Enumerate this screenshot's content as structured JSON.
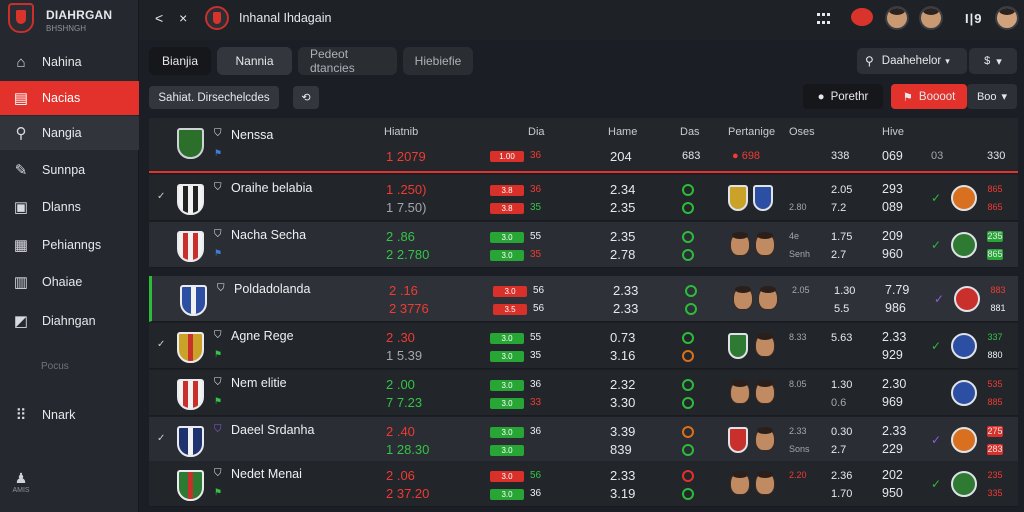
{
  "brand": {
    "name": "DIAHRGAN",
    "sub": "BHSHNGH"
  },
  "sidebar": {
    "items": [
      {
        "label": "Nahina",
        "icon": "home-icon"
      },
      {
        "label": "Nacias",
        "icon": "news-icon"
      },
      {
        "label": "Nangia",
        "icon": "search-icon"
      },
      {
        "label": "Sunnpa",
        "icon": "pen-icon"
      },
      {
        "label": "Dlanns",
        "icon": "image-icon"
      },
      {
        "label": "Pehianngs",
        "icon": "folder-icon"
      },
      {
        "label": "Ohaiae",
        "icon": "building-icon"
      },
      {
        "label": "Diahngan",
        "icon": "chart-icon"
      }
    ],
    "section": "Pocus",
    "extra": {
      "label": "Nnark",
      "icon": "grid-icon"
    },
    "footer": {
      "label": "AMIS",
      "icon": "person-icon"
    }
  },
  "topbar": {
    "title": "Inhanal Ihdagain",
    "arrows": "< ×",
    "bars": "I|9"
  },
  "tabs": [
    "Bianjia",
    "Nannia",
    "Pedeot dtancies",
    "Hiebiefie"
  ],
  "search": {
    "value": "Daahehelor",
    "caret": "▾"
  },
  "sort": {
    "label": "$",
    "caret": "▾"
  },
  "filters": {
    "chip": "Sahiat. Dirsechelcdes",
    "btn_dark": "Porethr",
    "btn_red": "Boooot",
    "btn_gray": "Boo"
  },
  "headers": {
    "name": "Nenssa",
    "c1": "Hiatnib",
    "c2": "Dia",
    "c3": "Hame",
    "c4": "Das",
    "c5": "Pertanige",
    "c6": "Oses",
    "c7": "Hive",
    "v1": "1 2079",
    "bar": "1.00",
    "bv": "36",
    "n1": "204",
    "h1": "683",
    "h2": "338",
    "h3": "069",
    "h4": "03",
    "h5": "330"
  },
  "rows": [
    {
      "name": "Oraihe belabia",
      "v1": "1 .250)",
      "v2": "1 7.50)",
      "b1": "3.8",
      "b2": "3.8",
      "bv1": "36",
      "bv2": "35",
      "n1": "2.34",
      "n2": "2.35",
      "s1": "",
      "s2": "2.80",
      "c1": "2.05",
      "c2": "7.2",
      "e1": "293",
      "e2": "089",
      "rt1": "865",
      "rt2": "865"
    },
    {
      "name": "Nacha Secha",
      "v1": "2 .86",
      "v2": "2 2.780",
      "b1": "3.0",
      "b2": "3.0",
      "bv1": "55",
      "bv2": "35",
      "n1": "2.35",
      "n2": "2.78",
      "s1": "4e",
      "s2": "Senh",
      "c1": "1.75",
      "c2": "2.7",
      "e1": "209",
      "e2": "960",
      "rt1": "235",
      "rt2": "865"
    },
    {
      "name": "Poldadolanda",
      "v1": "2 .16",
      "v2": "2 3776",
      "b1": "3.0",
      "b2": "3.5",
      "bv1": "56",
      "bv2": "56",
      "n1": "2.33",
      "n2": "2.33",
      "s1": "2.05",
      "s2": "",
      "c1": "1.30",
      "c2": "5.5",
      "e1": "7.79",
      "e2": "986",
      "rt1": "883",
      "rt2": "881"
    },
    {
      "name": "Agne Rege",
      "v1": "2 .30",
      "v2": "1 5.39",
      "b1": "3.0",
      "b2": "3.0",
      "bv1": "55",
      "bv2": "35",
      "n1": "0.73",
      "n2": "3.16",
      "s1": "8.33",
      "s2": "",
      "c1": "5.63",
      "c2": "",
      "e1": "2.33",
      "e2": "929",
      "rt1": "337",
      "rt2": "880"
    },
    {
      "name": "Nem elitie",
      "v1": "2 .00",
      "v2": "7 7.23",
      "b1": "3.0",
      "b2": "3.0",
      "bv1": "36",
      "bv2": "33",
      "n1": "2.32",
      "n2": "3.30",
      "s1": "8.05",
      "s2": "",
      "c1": "1.30",
      "c2": "0.6",
      "e1": "2.30",
      "e2": "969",
      "rt1": "535",
      "rt2": "885"
    },
    {
      "name": "Daeel Srdanha",
      "v1": "2 .40",
      "v2": "1 28.30",
      "b1": "3.0",
      "b2": "3.0",
      "bv1": "36",
      "bv2": "",
      "n1": "3.39",
      "n2": "839",
      "s1": "2.33",
      "s2": "Sons",
      "c1": "0.30",
      "c2": "2.7",
      "e1": "2.33",
      "e2": "229",
      "rt1": "275",
      "rt2": "283"
    },
    {
      "name": "Nedet Menai",
      "v1": "2 .06",
      "v2": "2 37.20",
      "b1": "3.0",
      "b2": "3.0",
      "bv1": "56",
      "bv2": "36",
      "n1": "2.33",
      "n2": "3.19",
      "s1": "2.20",
      "s2": "",
      "c1": "2.36",
      "c2": "1.70",
      "e1": "202",
      "e2": "950",
      "rt1": "235",
      "rt2": "335"
    }
  ]
}
